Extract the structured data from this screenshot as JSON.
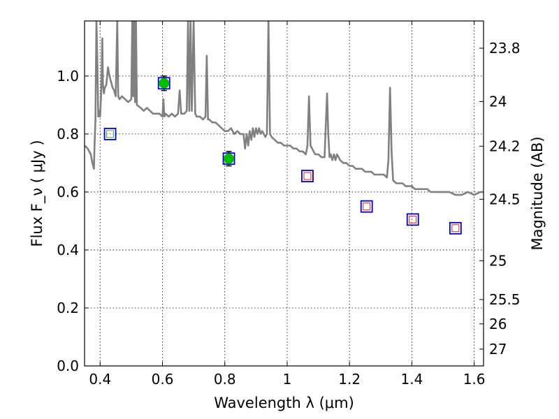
{
  "chart_data": {
    "type": "scatter",
    "xlabel": "Wavelength  λ (μm)",
    "ylabel": "Flux  F_ν  ( μJy )",
    "y2label": "Magnitude (AB)",
    "xlim": [
      0.35,
      1.63
    ],
    "ylim": [
      0.0,
      1.19
    ],
    "x_ticks": [
      0.4,
      0.6,
      0.8,
      1.0,
      1.2,
      1.4,
      1.6
    ],
    "x_tick_labels": [
      "0.4",
      "0.6",
      "0.8",
      "1",
      "1.2",
      "1.4",
      "1.6"
    ],
    "y_ticks": [
      0.0,
      0.2,
      0.4,
      0.6,
      0.8,
      1.0
    ],
    "y_tick_labels": [
      "0.0",
      "0.2",
      "0.4",
      "0.6",
      "0.8",
      "1.0"
    ],
    "mag_ticks": [
      {
        "flux": 1.096,
        "label": "23.8"
      },
      {
        "flux": 0.912,
        "label": "24"
      },
      {
        "flux": 0.758,
        "label": "24.2"
      },
      {
        "flux": 0.575,
        "label": "24.5"
      },
      {
        "flux": 0.363,
        "label": "25"
      },
      {
        "flux": 0.229,
        "label": "25.5"
      },
      {
        "flux": 0.145,
        "label": "26"
      },
      {
        "flux": 0.058,
        "label": "27"
      }
    ],
    "grid": true,
    "colors": {
      "spectrum": "#808080",
      "model_box": "#0000cc",
      "obs_point": "#00bb00",
      "upper_box": "#cc2222",
      "green_box": "#44aa44"
    },
    "series": [
      {
        "name": "model spectrum",
        "type": "line",
        "points": [
          [
            0.35,
            0.76
          ],
          [
            0.36,
            0.75
          ],
          [
            0.37,
            0.73
          ],
          [
            0.375,
            0.7
          ],
          [
            0.38,
            0.68
          ],
          [
            0.382,
            0.76
          ],
          [
            0.385,
            0.85
          ],
          [
            0.388,
            1.19
          ],
          [
            0.391,
            1.05
          ],
          [
            0.394,
            0.86
          ],
          [
            0.397,
            0.88
          ],
          [
            0.4,
            0.86
          ],
          [
            0.403,
            0.93
          ],
          [
            0.405,
            1.0
          ],
          [
            0.407,
            1.13
          ],
          [
            0.409,
            0.97
          ],
          [
            0.412,
            0.94
          ],
          [
            0.415,
            0.96
          ],
          [
            0.42,
            0.97
          ],
          [
            0.425,
            1.03
          ],
          [
            0.43,
            1.0
          ],
          [
            0.435,
            0.98
          ],
          [
            0.44,
            0.96
          ],
          [
            0.445,
            0.95
          ],
          [
            0.45,
            0.93
          ],
          [
            0.455,
            1.19
          ],
          [
            0.458,
            0.93
          ],
          [
            0.462,
            0.92
          ],
          [
            0.47,
            0.93
          ],
          [
            0.48,
            0.92
          ],
          [
            0.49,
            0.91
          ],
          [
            0.5,
            0.92
          ],
          [
            0.503,
            1.19
          ],
          [
            0.506,
            0.93
          ],
          [
            0.509,
            1.19
          ],
          [
            0.512,
            0.91
          ],
          [
            0.515,
            1.19
          ],
          [
            0.518,
            0.9
          ],
          [
            0.53,
            0.89
          ],
          [
            0.54,
            0.88
          ],
          [
            0.55,
            0.89
          ],
          [
            0.56,
            0.88
          ],
          [
            0.57,
            0.87
          ],
          [
            0.58,
            0.87
          ],
          [
            0.59,
            0.87
          ],
          [
            0.6,
            0.86
          ],
          [
            0.603,
            0.92
          ],
          [
            0.606,
            0.86
          ],
          [
            0.61,
            0.87
          ],
          [
            0.62,
            0.86
          ],
          [
            0.63,
            0.87
          ],
          [
            0.64,
            0.86
          ],
          [
            0.65,
            0.87
          ],
          [
            0.655,
            0.95
          ],
          [
            0.66,
            0.87
          ],
          [
            0.67,
            0.87
          ],
          [
            0.678,
            0.88
          ],
          [
            0.682,
            1.19
          ],
          [
            0.686,
            0.88
          ],
          [
            0.69,
            1.19
          ],
          [
            0.694,
            0.88
          ],
          [
            0.7,
            1.19
          ],
          [
            0.705,
            0.87
          ],
          [
            0.71,
            0.86
          ],
          [
            0.72,
            0.86
          ],
          [
            0.73,
            0.85
          ],
          [
            0.738,
            0.86
          ],
          [
            0.742,
            1.07
          ],
          [
            0.746,
            0.85
          ],
          [
            0.75,
            0.85
          ],
          [
            0.76,
            0.84
          ],
          [
            0.77,
            0.84
          ],
          [
            0.78,
            0.83
          ],
          [
            0.79,
            0.82
          ],
          [
            0.8,
            0.81
          ],
          [
            0.81,
            0.81
          ],
          [
            0.82,
            0.82
          ],
          [
            0.83,
            0.8
          ],
          [
            0.84,
            0.81
          ],
          [
            0.85,
            0.8
          ],
          [
            0.86,
            0.8
          ],
          [
            0.865,
            0.75
          ],
          [
            0.87,
            0.8
          ],
          [
            0.875,
            0.76
          ],
          [
            0.88,
            0.81
          ],
          [
            0.885,
            0.78
          ],
          [
            0.89,
            0.82
          ],
          [
            0.895,
            0.79
          ],
          [
            0.9,
            0.82
          ],
          [
            0.905,
            0.8
          ],
          [
            0.91,
            0.82
          ],
          [
            0.915,
            0.8
          ],
          [
            0.92,
            0.81
          ],
          [
            0.925,
            0.8
          ],
          [
            0.93,
            0.79
          ],
          [
            0.935,
            0.8
          ],
          [
            0.94,
            1.19
          ],
          [
            0.945,
            0.8
          ],
          [
            0.95,
            0.79
          ],
          [
            0.96,
            0.78
          ],
          [
            0.97,
            0.77
          ],
          [
            0.98,
            0.77
          ],
          [
            0.99,
            0.76
          ],
          [
            1.0,
            0.76
          ],
          [
            1.01,
            0.76
          ],
          [
            1.02,
            0.75
          ],
          [
            1.03,
            0.75
          ],
          [
            1.04,
            0.74
          ],
          [
            1.05,
            0.74
          ],
          [
            1.06,
            0.73
          ],
          [
            1.065,
            0.76
          ],
          [
            1.07,
            0.93
          ],
          [
            1.075,
            0.76
          ],
          [
            1.08,
            0.75
          ],
          [
            1.09,
            0.73
          ],
          [
            1.1,
            0.73
          ],
          [
            1.11,
            0.72
          ],
          [
            1.12,
            0.72
          ],
          [
            1.125,
            0.86
          ],
          [
            1.128,
            0.94
          ],
          [
            1.132,
            0.8
          ],
          [
            1.136,
            0.72
          ],
          [
            1.14,
            0.73
          ],
          [
            1.145,
            0.71
          ],
          [
            1.15,
            0.73
          ],
          [
            1.155,
            0.71
          ],
          [
            1.16,
            0.73
          ],
          [
            1.165,
            0.72
          ],
          [
            1.17,
            0.71
          ],
          [
            1.18,
            0.7
          ],
          [
            1.19,
            0.7
          ],
          [
            1.2,
            0.69
          ],
          [
            1.21,
            0.69
          ],
          [
            1.22,
            0.68
          ],
          [
            1.23,
            0.68
          ],
          [
            1.24,
            0.68
          ],
          [
            1.25,
            0.67
          ],
          [
            1.26,
            0.67
          ],
          [
            1.27,
            0.67
          ],
          [
            1.28,
            0.66
          ],
          [
            1.29,
            0.66
          ],
          [
            1.3,
            0.66
          ],
          [
            1.31,
            0.66
          ],
          [
            1.32,
            0.65
          ],
          [
            1.325,
            0.71
          ],
          [
            1.33,
            0.96
          ],
          [
            1.335,
            0.74
          ],
          [
            1.34,
            0.64
          ],
          [
            1.35,
            0.63
          ],
          [
            1.36,
            0.63
          ],
          [
            1.37,
            0.63
          ],
          [
            1.38,
            0.62
          ],
          [
            1.39,
            0.62
          ],
          [
            1.4,
            0.62
          ],
          [
            1.41,
            0.61
          ],
          [
            1.42,
            0.61
          ],
          [
            1.43,
            0.61
          ],
          [
            1.44,
            0.61
          ],
          [
            1.45,
            0.61
          ],
          [
            1.46,
            0.6
          ],
          [
            1.47,
            0.6
          ],
          [
            1.48,
            0.6
          ],
          [
            1.5,
            0.6
          ],
          [
            1.52,
            0.6
          ],
          [
            1.54,
            0.59
          ],
          [
            1.56,
            0.59
          ],
          [
            1.58,
            0.6
          ],
          [
            1.6,
            0.59
          ],
          [
            1.62,
            0.6
          ],
          [
            1.63,
            0.6
          ]
        ]
      },
      {
        "name": "model photometry",
        "type": "box",
        "points": [
          [
            0.432,
            0.8
          ],
          [
            0.605,
            0.975
          ],
          [
            0.813,
            0.715
          ],
          [
            1.065,
            0.655
          ],
          [
            1.255,
            0.55
          ],
          [
            1.403,
            0.505
          ],
          [
            1.54,
            0.475
          ]
        ]
      },
      {
        "name": "observed detections",
        "type": "errorbar",
        "points": [
          {
            "x": 0.605,
            "y": 0.975,
            "err": 0.025
          },
          {
            "x": 0.813,
            "y": 0.715,
            "err": 0.025
          }
        ]
      },
      {
        "name": "green marker",
        "type": "box-small",
        "points": [
          [
            0.432,
            0.8
          ]
        ]
      },
      {
        "name": "upper limits",
        "type": "box-small",
        "points": [
          [
            1.065,
            0.655
          ],
          [
            1.255,
            0.55
          ],
          [
            1.403,
            0.505
          ],
          [
            1.54,
            0.475
          ]
        ]
      }
    ]
  }
}
